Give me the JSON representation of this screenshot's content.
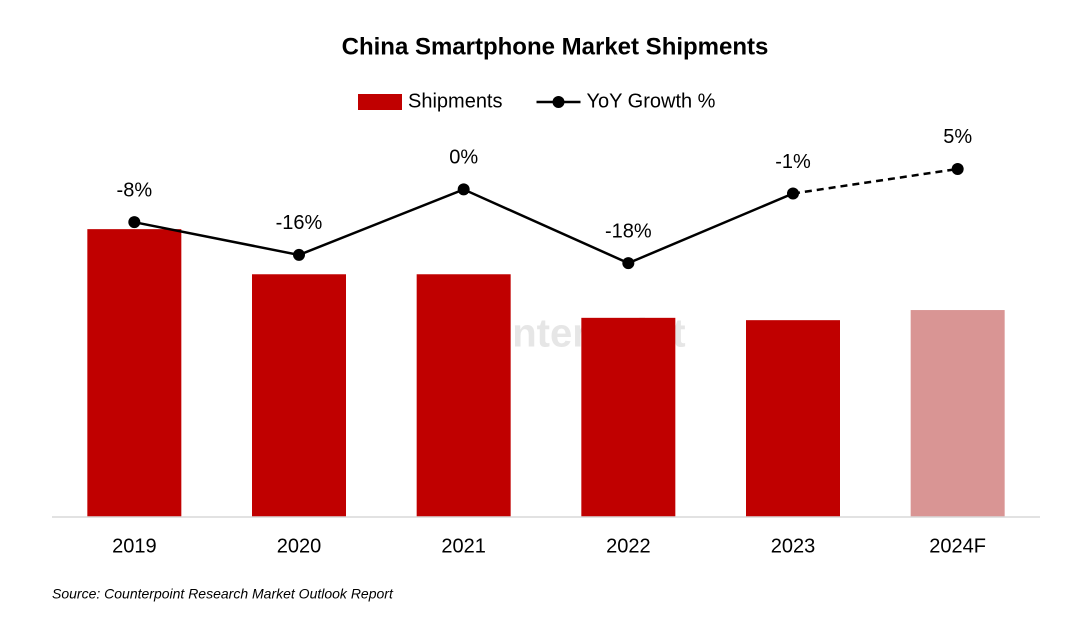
{
  "chart_data": {
    "type": "bar-line",
    "title": "China Smartphone Market Shipments",
    "categories": [
      "2019",
      "2020",
      "2021",
      "2022",
      "2023",
      "2024F"
    ],
    "series": [
      {
        "name": "Shipments",
        "type": "bar",
        "color": "#c00000",
        "colors": [
          "#c00000",
          "#c00000",
          "#c00000",
          "#c00000",
          "#c00000",
          "#d99594"
        ],
        "values": [
          370,
          312,
          312,
          256,
          253,
          266
        ]
      },
      {
        "name": "YoY Growth %",
        "type": "line",
        "axis": "y2",
        "color": "#000000",
        "dashed_from": 4,
        "values": [
          -8,
          -16,
          0,
          -18,
          -1,
          5
        ],
        "value_labels": [
          "-8%",
          "-16%",
          "0%",
          "-18%",
          "-1%",
          "5%"
        ]
      }
    ],
    "ylim": [
      0,
      500
    ],
    "y2lim": [
      -80,
      15
    ],
    "legend": "top",
    "watermark": "Counterpoint",
    "source": "Source: Counterpoint Research Market Outlook Report"
  }
}
